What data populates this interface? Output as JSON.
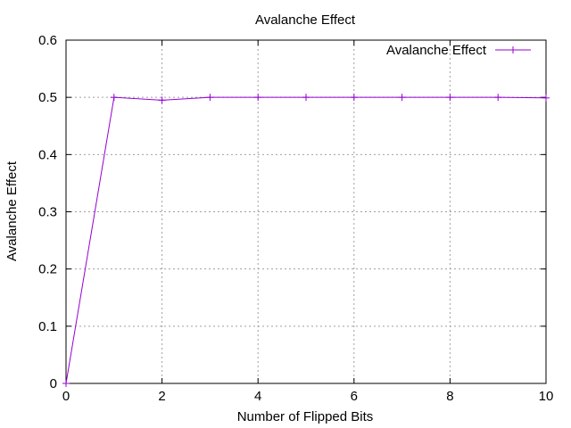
{
  "chart_data": {
    "type": "line",
    "title": "Avalanche Effect",
    "xlabel": "Number of Flipped Bits",
    "ylabel": "Avalanche Effect",
    "xlim": [
      0,
      10
    ],
    "ylim": [
      0,
      0.6
    ],
    "xticks": [
      0,
      2,
      4,
      6,
      8,
      10
    ],
    "yticks": [
      0,
      0.1,
      0.2,
      0.3,
      0.4,
      0.5,
      0.6
    ],
    "xtick_labels": [
      "0",
      "2",
      "4",
      "6",
      "8",
      "10"
    ],
    "ytick_labels": [
      "0",
      "0.1",
      "0.2",
      "0.3",
      "0.4",
      "0.5",
      "0.6"
    ],
    "grid": true,
    "legend_position": "top-right",
    "series": [
      {
        "name": "Avalanche Effect",
        "color": "#9400d3",
        "marker": "plus",
        "x": [
          0,
          1,
          2,
          3,
          4,
          5,
          6,
          7,
          8,
          9,
          10
        ],
        "y": [
          0,
          0.5,
          0.495,
          0.5,
          0.5,
          0.5,
          0.5,
          0.5,
          0.5,
          0.5,
          0.499
        ]
      }
    ]
  }
}
